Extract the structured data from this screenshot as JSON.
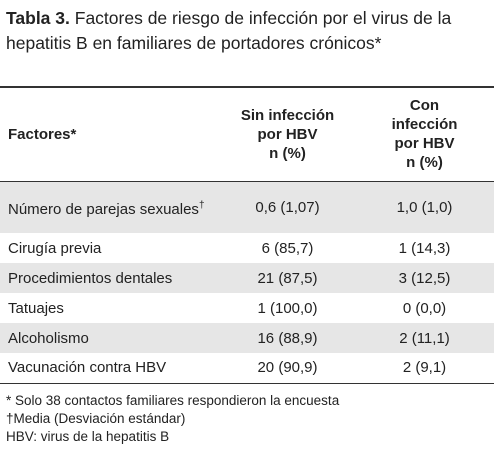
{
  "title": {
    "label": "Tabla 3.",
    "text": "Factores de riesgo de infección por el virus de la hepatitis B en familiares de portadores crónicos*"
  },
  "table": {
    "header": [
      [
        "Factores*"
      ],
      [
        "Sin infección",
        "por HBV",
        "n (%)"
      ],
      [
        "Con",
        "infección",
        "por HBV",
        "n (%)"
      ]
    ],
    "rows": [
      [
        {
          "text": "Número de parejas sexuales",
          "sup": "†"
        },
        "0,6 (1,07)",
        "1,0 (1,0)"
      ],
      [
        {
          "text": "Cirugía previa"
        },
        "6 (85,7)",
        "1 (14,3)"
      ],
      [
        {
          "text": "Procedimientos dentales"
        },
        "21 (87,5)",
        "3 (12,5)"
      ],
      [
        {
          "text": "Tatuajes"
        },
        "1 (100,0)",
        "0 (0,0)"
      ],
      [
        {
          "text": "Alcoholismo"
        },
        "16 (88,9)",
        "2 (11,1)"
      ],
      [
        {
          "text": "Vacunación contra HBV"
        },
        "20 (90,9)",
        "2 (9,1)"
      ]
    ]
  },
  "footnotes": [
    "* Solo 38 contactos familiares respondieron la encuesta",
    "†Media (Desviación estándar)",
    "HBV: virus de la hepatitis B"
  ]
}
